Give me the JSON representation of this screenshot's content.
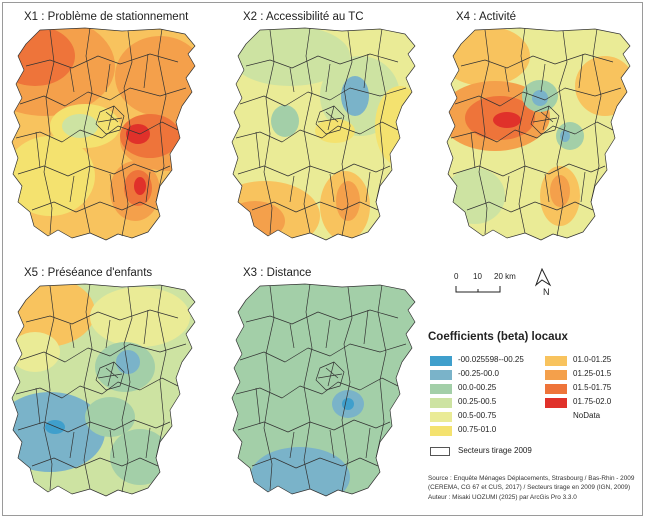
{
  "panels": [
    {
      "id": "x1",
      "title": "X1 : Problème de stationnement"
    },
    {
      "id": "x2",
      "title": "X2 : Accessibilité au TC"
    },
    {
      "id": "x4",
      "title": "X4 : Activité"
    },
    {
      "id": "x5",
      "title": "X5 : Préséance d'enfants"
    },
    {
      "id": "x3",
      "title": "X3 : Distance"
    }
  ],
  "scale": {
    "t0": "0",
    "t1": "10",
    "t2": "20 km"
  },
  "north_label": "N",
  "legend": {
    "title": "Coefficients (beta) locaux",
    "classes": [
      {
        "label": "-00.025598--00.25",
        "color": "#3f9fcc"
      },
      {
        "label": "-00.25-00.0",
        "color": "#7ab3c9"
      },
      {
        "label": "00.0-00.25",
        "color": "#a3cfa8"
      },
      {
        "label": "00.25-00.5",
        "color": "#cde3a2"
      },
      {
        "label": "00.5-00.75",
        "color": "#eaeb96"
      },
      {
        "label": "00.75-01.0",
        "color": "#f4e26f"
      },
      {
        "label": "01.0-01.25",
        "color": "#f8c35e"
      },
      {
        "label": "01.25-01.5",
        "color": "#f4a04b"
      },
      {
        "label": "01.5-01.75",
        "color": "#ee743a"
      },
      {
        "label": "01.75-02.0",
        "color": "#e0312a"
      },
      {
        "label": "NoData",
        "color": ""
      }
    ],
    "sectors_label": "Secteurs tirage 2009"
  },
  "source": {
    "line1": "Source : Enquête Ménages Déplacements, Strasbourg / Bas-Rhin - 2009",
    "line2": "(CEREMA, CG 67 et CUS, 2017) / Secteurs tirage en 2009 (IGN, 2009)",
    "line3": "Auteur : Misaki UOZUMI (2025) par ArcGis Pro 3.3.0"
  }
}
